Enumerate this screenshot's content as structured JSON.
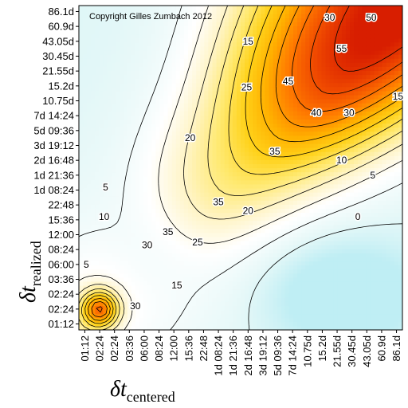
{
  "chart_data": {
    "type": "heatmap",
    "subtype": "contour",
    "title": "",
    "copyright": "Copyright Gilles Zumbach 2012",
    "xlabel_main": "δt",
    "xlabel_sub": "centered",
    "ylabel_main": "δt",
    "ylabel_sub": "realized",
    "x_ticks": [
      "01:12",
      "02:24",
      "02:24",
      "03:36",
      "06:00",
      "08:24",
      "12:00",
      "15:36",
      "22:48",
      "1d 08:24",
      "1d 21:36",
      "2d 16:48",
      "3d 19:12",
      "5d 09:36",
      "7d 14:24",
      "10.75d",
      "15.2d",
      "21.55d",
      "30.45d",
      "43.05d",
      "60.9d",
      "86.1d"
    ],
    "y_ticks": [
      "01:12",
      "02:24",
      "02:24",
      "03:36",
      "06:00",
      "08:24",
      "12:00",
      "15:36",
      "22:48",
      "1d 08:24",
      "1d 21:36",
      "2d 16:48",
      "3d 19:12",
      "5d 09:36",
      "7d 14:24",
      "10.75d",
      "15.2d",
      "21.55d",
      "30.45d",
      "43.05d",
      "60.9d",
      "86.1d"
    ],
    "contour_levels": [
      0,
      5,
      10,
      15,
      20,
      25,
      30,
      35,
      40,
      45,
      50,
      55
    ],
    "contour_labels": [
      {
        "text": "50",
        "xi": 19.3,
        "yi": 20.6
      },
      {
        "text": "55",
        "xi": 17.3,
        "yi": 18.5
      },
      {
        "text": "30",
        "xi": 16.5,
        "yi": 20.6
      },
      {
        "text": "15",
        "xi": 11.0,
        "yi": 19.0
      },
      {
        "text": "45",
        "xi": 13.7,
        "yi": 16.3
      },
      {
        "text": "40",
        "xi": 15.6,
        "yi": 14.2
      },
      {
        "text": "30",
        "xi": 17.8,
        "yi": 14.2
      },
      {
        "text": "15",
        "xi": 21.1,
        "yi": 15.3
      },
      {
        "text": "25",
        "xi": 10.9,
        "yi": 15.9
      },
      {
        "text": "20",
        "xi": 7.1,
        "yi": 12.5
      },
      {
        "text": "35",
        "xi": 12.8,
        "yi": 11.6
      },
      {
        "text": "10",
        "xi": 17.3,
        "yi": 11.0
      },
      {
        "text": "5",
        "xi": 19.4,
        "yi": 10.0
      },
      {
        "text": "0",
        "xi": 18.4,
        "yi": 7.2
      },
      {
        "text": "35",
        "xi": 9.0,
        "yi": 8.2
      },
      {
        "text": "20",
        "xi": 11.0,
        "yi": 7.6
      },
      {
        "text": "5",
        "xi": 1.4,
        "yi": 9.2
      },
      {
        "text": "10",
        "xi": 1.3,
        "yi": 7.2
      },
      {
        "text": "35",
        "xi": 5.6,
        "yi": 6.2
      },
      {
        "text": "30",
        "xi": 4.2,
        "yi": 5.3
      },
      {
        "text": "25",
        "xi": 7.6,
        "yi": 5.5
      },
      {
        "text": "5",
        "xi": 0.1,
        "yi": 4.0
      },
      {
        "text": "15",
        "xi": 6.2,
        "yi": 2.6
      },
      {
        "text": "30",
        "xi": 3.4,
        "yi": 1.2
      }
    ],
    "colorscale": [
      "#bfeef4",
      "#e6f8f8",
      "#ffffff",
      "#fff4c4",
      "#ffe970",
      "#ffd21a",
      "#ffb000",
      "#ff7a00",
      "#f04a00",
      "#d81e00"
    ],
    "vmin": -6,
    "vmax": 58,
    "grid": false,
    "legend": "none"
  }
}
